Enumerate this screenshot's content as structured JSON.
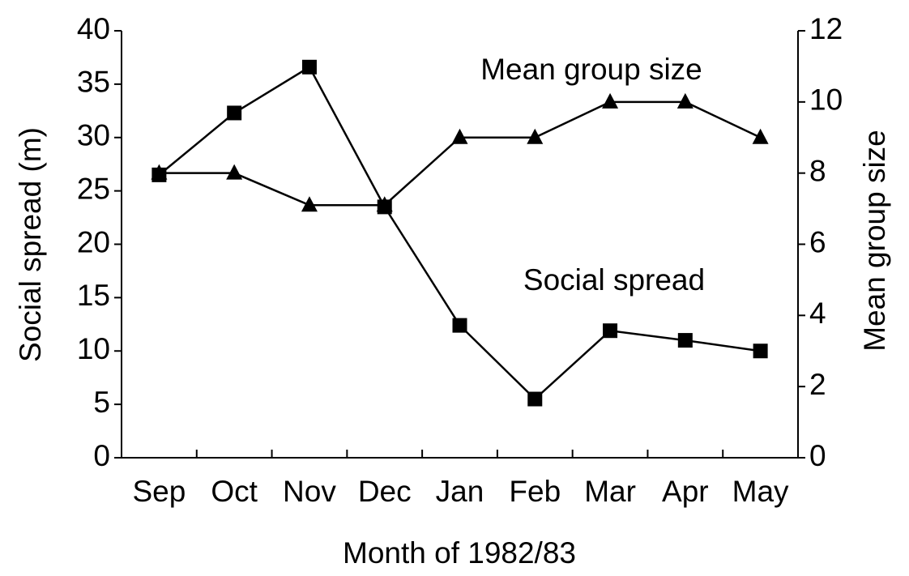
{
  "chart_data": {
    "type": "line",
    "x_label": "Month of 1982/83",
    "y_label": "Social spread (m)",
    "y2_label": "Mean group size",
    "annotations": [
      "Mean group size",
      "Social spread"
    ],
    "categories": [
      "Sep",
      "Oct",
      "Nov",
      "Dec",
      "Jan",
      "Feb",
      "Mar",
      "Apr",
      "May"
    ],
    "series": [
      {
        "name": "Social spread",
        "color": "#000000",
        "marker": "square",
        "axis": "y",
        "values": [
          26.5,
          32.3,
          36.6,
          23.5,
          12.4,
          5.5,
          11.9,
          11.0,
          10.0
        ]
      },
      {
        "name": "Mean group size",
        "color": "#000000",
        "marker": "triangle",
        "axis": "y2",
        "values": [
          8.0,
          8.0,
          7.1,
          7.1,
          9.0,
          9.0,
          10.0,
          10.0,
          9.0
        ]
      }
    ],
    "ylim": [
      0,
      40
    ],
    "yticks": [
      0,
      5,
      10,
      15,
      20,
      25,
      30,
      35,
      40
    ],
    "y2lim": [
      0,
      12
    ],
    "y2ticks": [
      0,
      2,
      4,
      6,
      8,
      10,
      12
    ],
    "grid": false,
    "legend": false
  }
}
